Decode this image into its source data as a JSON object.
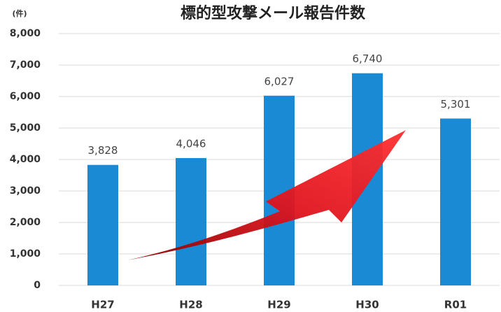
{
  "chart_data": {
    "type": "bar",
    "title": "標的型攻撃メール報告件数",
    "y_label": "(件)",
    "categories": [
      "H27",
      "H28",
      "H29",
      "H30",
      "R01"
    ],
    "values": [
      3828,
      4046,
      6027,
      6740,
      5301
    ],
    "value_labels": [
      "3,828",
      "4,046",
      "6,027",
      "6,740",
      "5,301"
    ],
    "color": "#1a8ad4",
    "ylim": [
      0,
      8000
    ],
    "yticks": [
      0,
      {
        "value": 1000,
        "label": "1,000"
      },
      {
        "value": 2000,
        "label": "2,000"
      },
      {
        "value": 3000,
        "label": "3,000"
      },
      {
        "value": 4000,
        "label": "4,000"
      },
      {
        "value": 5000,
        "label": "5,000"
      },
      {
        "value": 6000,
        "label": "6,000"
      },
      {
        "value": 7000,
        "label": "7,000"
      },
      {
        "value": 8000,
        "label": "8,000"
      }
    ],
    "grid": true
  }
}
